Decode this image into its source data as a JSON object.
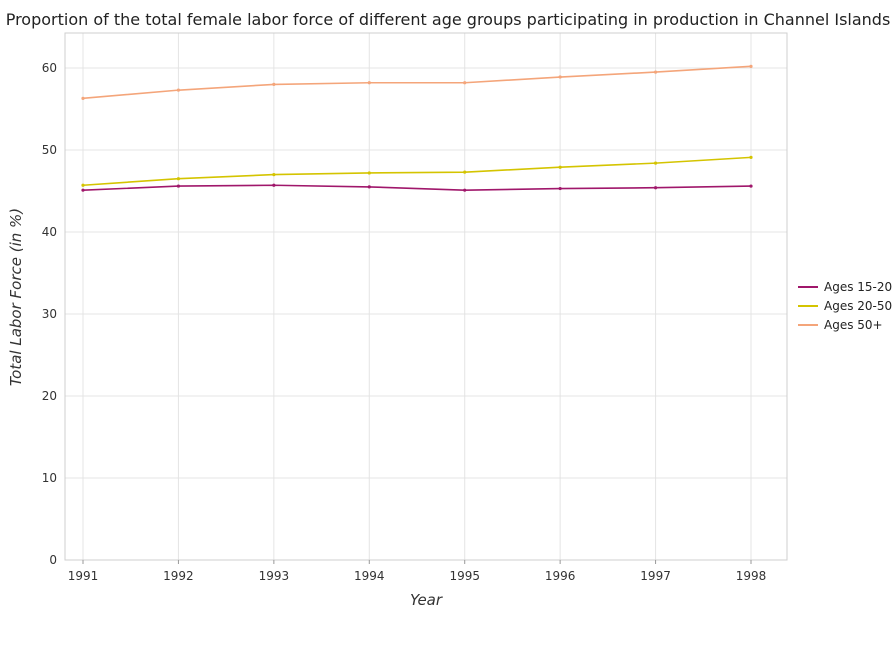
{
  "chart_data": {
    "type": "line",
    "title": "Proportion of the total female labor force of different age groups participating in production in Channel Islands",
    "xlabel": "Year",
    "ylabel": "Total Labor Force (in %)",
    "categories": [
      "1991",
      "1992",
      "1993",
      "1994",
      "1995",
      "1996",
      "1997",
      "1998"
    ],
    "ylim": [
      0,
      60
    ],
    "yticks": [
      0,
      10,
      20,
      30,
      40,
      50,
      60
    ],
    "grid": true,
    "legend_position": "right",
    "series": [
      {
        "name": "Ages 15-20",
        "color": "#a0176b",
        "values": [
          45.1,
          45.6,
          45.7,
          45.5,
          45.1,
          45.3,
          45.4,
          45.6
        ]
      },
      {
        "name": "Ages 20-50",
        "color": "#d4c400",
        "values": [
          45.7,
          46.5,
          47.0,
          47.2,
          47.3,
          47.9,
          48.4,
          49.1
        ]
      },
      {
        "name": "Ages 50+",
        "color": "#f4a57a",
        "values": [
          56.3,
          57.3,
          58.0,
          58.2,
          58.2,
          58.9,
          59.5,
          60.2
        ]
      }
    ]
  }
}
